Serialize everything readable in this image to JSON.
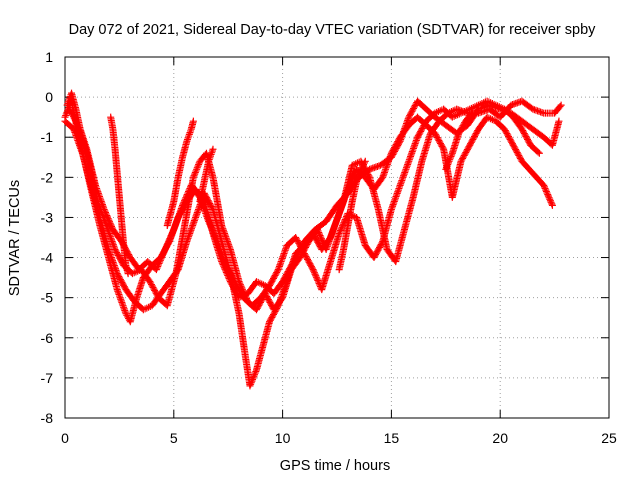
{
  "chart_data": {
    "type": "scatter",
    "title": "Day 072 of 2021, Sidereal Day-to-day VTEC variation (SDTVAR) for receiver spby",
    "xlabel": "GPS time / hours",
    "ylabel": "SDTVAR / TECUs",
    "xlim": [
      0,
      25
    ],
    "ylim": [
      -8,
      1
    ],
    "xticks": [
      "0",
      "5",
      "10",
      "15",
      "20",
      "25"
    ],
    "yticks": [
      "-8",
      "-7",
      "-6",
      "-5",
      "-4",
      "-3",
      "-2",
      "-1",
      "0",
      "1"
    ],
    "grid": true,
    "legend": "none",
    "marker": "plus",
    "color": "#ff0000",
    "series": [
      {
        "values": [
          [
            0.0,
            -0.5
          ],
          [
            0.3,
            -0.1
          ],
          [
            0.6,
            -0.9
          ],
          [
            0.9,
            -1.6
          ],
          [
            1.2,
            -2.3
          ],
          [
            1.6,
            -3.2
          ],
          [
            2.0,
            -4.0
          ],
          [
            2.4,
            -4.8
          ],
          [
            2.8,
            -5.4
          ],
          [
            3.0,
            -5.6
          ],
          [
            3.3,
            -5.0
          ],
          [
            3.6,
            -4.5
          ],
          [
            4.0,
            -4.2
          ],
          [
            4.4,
            -4.0
          ],
          [
            4.8,
            -3.6
          ],
          [
            5.2,
            -3.0
          ],
          [
            5.6,
            -2.6
          ],
          [
            6.0,
            -2.3
          ],
          [
            6.4,
            -2.6
          ],
          [
            6.8,
            -3.4
          ],
          [
            7.2,
            -4.1
          ],
          [
            7.6,
            -4.6
          ],
          [
            8.0,
            -5.0
          ],
          [
            8.4,
            -4.9
          ],
          [
            8.8,
            -4.6
          ],
          [
            9.2,
            -4.7
          ],
          [
            9.6,
            -4.9
          ],
          [
            10.0,
            -4.6
          ],
          [
            10.5,
            -4.1
          ],
          [
            11.0,
            -3.6
          ],
          [
            11.5,
            -3.3
          ],
          [
            12.0,
            -3.1
          ],
          [
            12.5,
            -2.7
          ],
          [
            13.0,
            -2.4
          ],
          [
            13.5,
            -2.0
          ],
          [
            14.0,
            -1.8
          ],
          [
            14.5,
            -1.7
          ],
          [
            15.0,
            -1.5
          ],
          [
            15.4,
            -1.1
          ],
          [
            15.8,
            -0.5
          ],
          [
            16.2,
            -0.1
          ],
          [
            16.6,
            -0.3
          ],
          [
            17.0,
            -0.5
          ],
          [
            17.5,
            -0.7
          ],
          [
            18.0,
            -0.9
          ],
          [
            18.5,
            -0.7
          ],
          [
            19.0,
            -0.3
          ],
          [
            19.5,
            -0.2
          ],
          [
            20.0,
            -0.3
          ],
          [
            20.5,
            -0.4
          ],
          [
            21.0,
            -0.6
          ],
          [
            21.5,
            -0.8
          ],
          [
            22.0,
            -1.0
          ],
          [
            22.4,
            -1.2
          ],
          [
            22.7,
            -0.6
          ]
        ]
      },
      {
        "values": [
          [
            0.0,
            -0.6
          ],
          [
            0.4,
            -0.8
          ],
          [
            0.8,
            -1.4
          ],
          [
            1.2,
            -2.2
          ],
          [
            1.6,
            -3.0
          ],
          [
            2.0,
            -3.8
          ],
          [
            2.4,
            -4.4
          ],
          [
            2.8,
            -4.8
          ],
          [
            3.2,
            -5.1
          ],
          [
            3.6,
            -5.3
          ],
          [
            4.0,
            -5.2
          ],
          [
            4.4,
            -4.9
          ],
          [
            4.8,
            -4.6
          ],
          [
            5.2,
            -4.3
          ],
          [
            5.6,
            -3.6
          ],
          [
            6.0,
            -3.0
          ],
          [
            6.4,
            -2.4
          ],
          [
            6.8,
            -2.8
          ],
          [
            7.2,
            -3.6
          ],
          [
            7.6,
            -4.4
          ],
          [
            8.0,
            -5.4
          ],
          [
            8.3,
            -6.5
          ],
          [
            8.5,
            -7.2
          ],
          [
            8.8,
            -6.8
          ],
          [
            9.1,
            -6.2
          ],
          [
            9.4,
            -5.6
          ],
          [
            9.8,
            -5.2
          ],
          [
            10.2,
            -4.6
          ],
          [
            10.6,
            -3.9
          ],
          [
            11.0,
            -3.7
          ],
          [
            11.4,
            -3.4
          ],
          [
            11.8,
            -3.8
          ],
          [
            12.2,
            -3.5
          ],
          [
            12.6,
            -2.9
          ],
          [
            13.0,
            -2.3
          ],
          [
            13.4,
            -1.8
          ],
          [
            13.8,
            -2.0
          ],
          [
            14.2,
            -2.3
          ],
          [
            14.6,
            -2.0
          ],
          [
            15.0,
            -1.4
          ],
          [
            15.4,
            -1.0
          ],
          [
            15.8,
            -0.7
          ],
          [
            16.2,
            -0.5
          ],
          [
            16.6,
            -0.7
          ],
          [
            17.0,
            -0.9
          ],
          [
            17.4,
            -1.3
          ],
          [
            17.8,
            -2.5
          ],
          [
            18.2,
            -1.6
          ],
          [
            18.6,
            -1.2
          ],
          [
            19.0,
            -0.8
          ],
          [
            19.4,
            -0.5
          ],
          [
            19.8,
            -0.6
          ],
          [
            20.2,
            -0.8
          ],
          [
            20.6,
            -1.2
          ],
          [
            21.0,
            -1.6
          ],
          [
            21.5,
            -1.9
          ],
          [
            22.0,
            -2.2
          ],
          [
            22.4,
            -2.7
          ]
        ]
      },
      {
        "values": [
          [
            0.2,
            -0.3
          ],
          [
            0.5,
            -0.6
          ],
          [
            0.8,
            -1.0
          ],
          [
            1.1,
            -1.6
          ],
          [
            1.5,
            -2.6
          ],
          [
            1.9,
            -3.2
          ],
          [
            2.3,
            -3.8
          ],
          [
            2.7,
            -4.2
          ],
          [
            3.1,
            -4.4
          ],
          [
            3.5,
            -4.3
          ],
          [
            3.9,
            -4.6
          ],
          [
            4.3,
            -5.0
          ],
          [
            4.7,
            -5.2
          ],
          [
            5.1,
            -4.4
          ],
          [
            5.5,
            -3.2
          ],
          [
            5.9,
            -2.0
          ],
          [
            6.2,
            -1.6
          ],
          [
            6.5,
            -1.4
          ],
          [
            6.8,
            -2.0
          ],
          [
            7.2,
            -3.2
          ],
          [
            7.6,
            -3.8
          ],
          [
            8.0,
            -4.6
          ],
          [
            8.4,
            -5.1
          ],
          [
            8.8,
            -5.3
          ],
          [
            9.2,
            -4.9
          ],
          [
            9.6,
            -5.3
          ],
          [
            10.0,
            -5.0
          ],
          [
            10.4,
            -4.3
          ],
          [
            10.8,
            -4.0
          ],
          [
            11.2,
            -3.6
          ],
          [
            11.6,
            -3.3
          ],
          [
            12.0,
            -3.8
          ],
          [
            12.4,
            -3.2
          ],
          [
            12.8,
            -2.6
          ],
          [
            13.2,
            -1.7
          ],
          [
            13.6,
            -1.6
          ],
          [
            14.0,
            -2.0
          ],
          [
            14.4,
            -2.8
          ],
          [
            14.8,
            -3.8
          ],
          [
            15.2,
            -4.1
          ],
          [
            15.6,
            -3.3
          ],
          [
            16.0,
            -2.5
          ],
          [
            16.4,
            -1.6
          ],
          [
            16.8,
            -0.9
          ],
          [
            17.2,
            -0.6
          ],
          [
            17.6,
            -0.4
          ],
          [
            18.0,
            -0.3
          ],
          [
            18.5,
            -0.4
          ],
          [
            19.0,
            -0.4
          ],
          [
            19.5,
            -0.3
          ],
          [
            20.0,
            -0.5
          ],
          [
            20.5,
            -0.2
          ],
          [
            21.0,
            -0.1
          ],
          [
            21.5,
            -0.3
          ],
          [
            22.0,
            -0.4
          ],
          [
            22.5,
            -0.4
          ],
          [
            22.8,
            -0.2
          ]
        ]
      },
      {
        "values": [
          [
            0.1,
            -0.2
          ],
          [
            0.3,
            0.1
          ],
          [
            0.5,
            -0.3
          ],
          [
            0.7,
            -0.8
          ],
          [
            1.0,
            -1.3
          ],
          [
            1.4,
            -2.2
          ],
          [
            1.8,
            -2.8
          ],
          [
            2.2,
            -3.3
          ],
          [
            2.6,
            -3.6
          ],
          [
            3.0,
            -4.0
          ],
          [
            3.4,
            -4.3
          ],
          [
            3.8,
            -4.1
          ],
          [
            4.2,
            -4.3
          ],
          [
            4.6,
            -3.8
          ],
          [
            5.0,
            -3.3
          ],
          [
            5.4,
            -2.7
          ],
          [
            5.8,
            -2.2
          ],
          [
            6.2,
            -2.5
          ],
          [
            6.6,
            -3.1
          ],
          [
            7.0,
            -3.6
          ],
          [
            7.4,
            -4.2
          ],
          [
            7.8,
            -4.6
          ],
          [
            8.2,
            -5.0
          ],
          [
            8.6,
            -5.2
          ],
          [
            9.0,
            -5.0
          ],
          [
            9.4,
            -4.7
          ],
          [
            9.8,
            -4.3
          ],
          [
            10.2,
            -3.7
          ],
          [
            10.6,
            -3.5
          ],
          [
            11.0,
            -3.9
          ],
          [
            11.4,
            -4.3
          ],
          [
            11.8,
            -4.8
          ],
          [
            12.2,
            -4.1
          ],
          [
            12.6,
            -3.4
          ],
          [
            13.0,
            -2.9
          ],
          [
            13.4,
            -3.0
          ],
          [
            13.8,
            -3.7
          ],
          [
            14.2,
            -4.0
          ],
          [
            14.6,
            -3.6
          ],
          [
            15.0,
            -2.8
          ],
          [
            15.4,
            -2.2
          ],
          [
            15.8,
            -1.6
          ],
          [
            16.2,
            -1.0
          ],
          [
            16.6,
            -0.6
          ],
          [
            17.0,
            -0.4
          ],
          [
            17.4,
            -0.3
          ],
          [
            17.8,
            -0.5
          ],
          [
            18.2,
            -0.4
          ],
          [
            18.6,
            -0.3
          ],
          [
            19.0,
            -0.2
          ],
          [
            19.4,
            -0.1
          ],
          [
            19.8,
            -0.2
          ],
          [
            20.2,
            -0.3
          ],
          [
            20.6,
            -0.5
          ],
          [
            21.0,
            -0.8
          ],
          [
            21.4,
            -1.2
          ],
          [
            21.8,
            -1.4
          ]
        ]
      },
      {
        "values": [
          [
            2.1,
            -0.5
          ],
          [
            2.2,
            -0.8
          ],
          [
            2.3,
            -1.3
          ],
          [
            2.4,
            -1.9
          ],
          [
            2.5,
            -2.5
          ],
          [
            2.6,
            -3.1
          ],
          [
            2.7,
            -3.7
          ],
          [
            2.8,
            -4.2
          ],
          [
            2.9,
            -4.4
          ]
        ]
      },
      {
        "values": [
          [
            4.7,
            -3.2
          ],
          [
            5.0,
            -2.6
          ],
          [
            5.2,
            -2.0
          ],
          [
            5.4,
            -1.5
          ],
          [
            5.6,
            -1.1
          ],
          [
            5.8,
            -0.8
          ],
          [
            5.9,
            -0.6
          ]
        ]
      },
      {
        "values": [
          [
            6.2,
            -2.6
          ],
          [
            6.4,
            -2.1
          ],
          [
            6.6,
            -1.6
          ],
          [
            6.8,
            -1.3
          ]
        ]
      },
      {
        "values": [
          [
            12.6,
            -4.3
          ],
          [
            12.8,
            -3.8
          ],
          [
            13.0,
            -3.2
          ],
          [
            13.2,
            -2.6
          ],
          [
            13.4,
            -2.1
          ],
          [
            13.6,
            -1.8
          ],
          [
            13.8,
            -1.6
          ]
        ]
      },
      {
        "values": [
          [
            17.5,
            -1.8
          ],
          [
            17.8,
            -1.4
          ],
          [
            18.1,
            -0.9
          ],
          [
            18.4,
            -0.6
          ],
          [
            18.7,
            -0.4
          ]
        ]
      }
    ]
  }
}
